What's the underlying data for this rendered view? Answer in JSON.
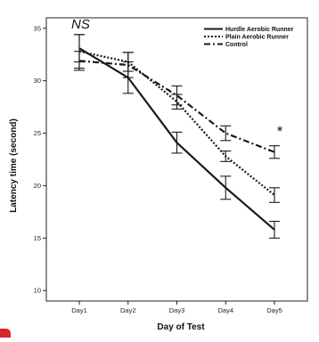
{
  "chart_data": {
    "type": "line",
    "categories": [
      "Day1",
      "Day2",
      "Day3",
      "Day4",
      "Day5"
    ],
    "xlabel": "Day of Test",
    "ylabel": "Latency time (second)",
    "ylim": [
      9,
      36
    ],
    "yticks": [
      10,
      15,
      20,
      25,
      30,
      35
    ],
    "grid": false,
    "legend_position": "top-right",
    "annotations": {
      "top_left": "NS",
      "day5": "*"
    },
    "series": [
      {
        "name": "Hurdle Aerobic Runner",
        "line_style": "solid",
        "values": [
          33.1,
          30.3,
          24.1,
          19.8,
          15.8
        ],
        "error": [
          1.3,
          1.5,
          1.0,
          1.1,
          0.8
        ]
      },
      {
        "name": "Plain Aerobic Runner",
        "line_style": "dotted",
        "values": [
          32.8,
          31.8,
          28.0,
          22.8,
          19.1
        ],
        "error": [
          1.6,
          0.9,
          0.7,
          0.5,
          0.7
        ]
      },
      {
        "name": "Control",
        "line_style": "dash-dot",
        "values": [
          31.9,
          31.5,
          28.6,
          25.0,
          23.2
        ],
        "error": [
          0.9,
          1.2,
          0.9,
          0.7,
          0.6
        ]
      }
    ]
  }
}
